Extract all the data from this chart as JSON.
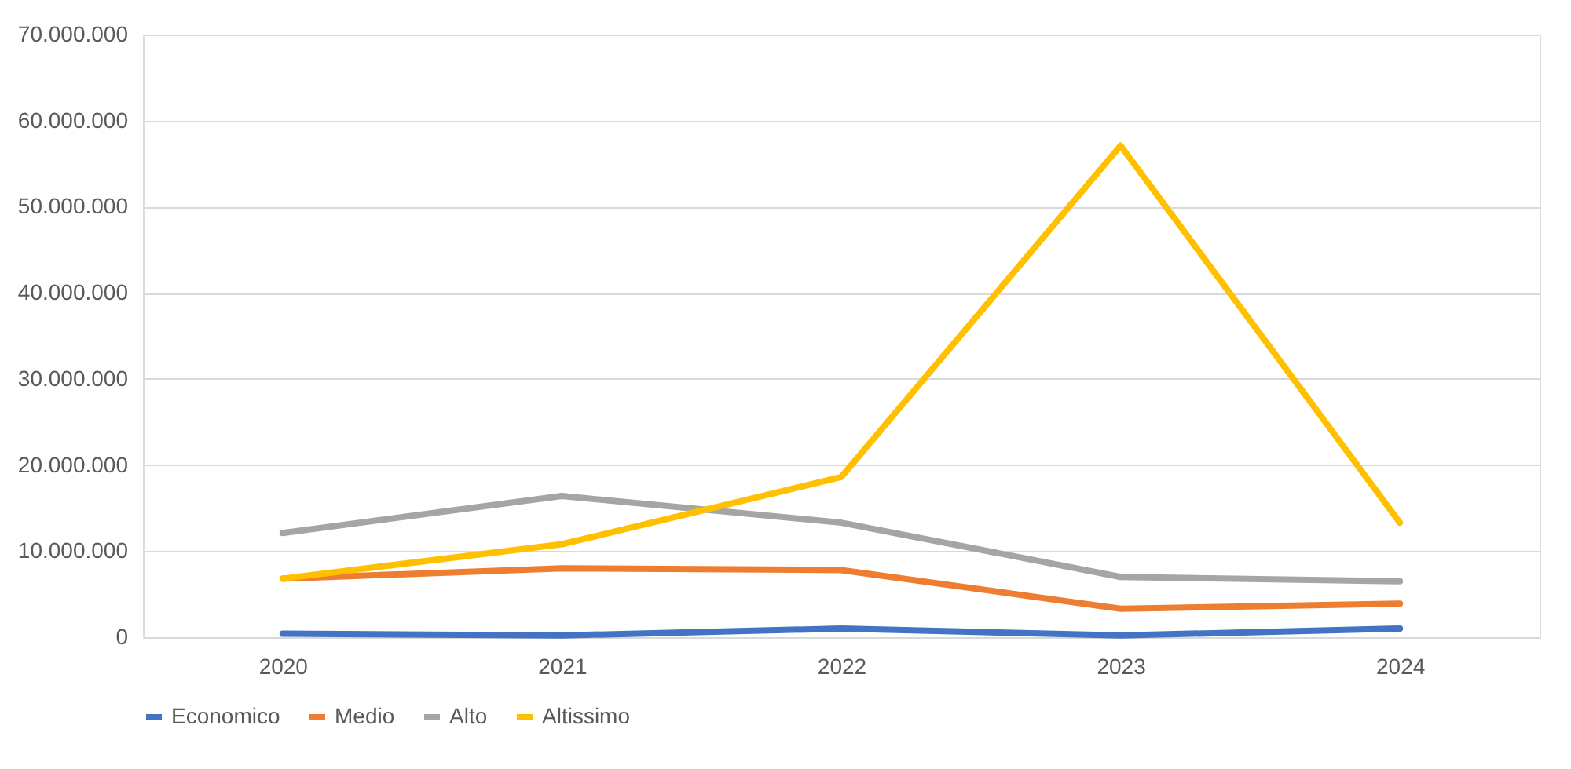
{
  "chart_data": {
    "type": "line",
    "categories": [
      "2020",
      "2021",
      "2022",
      "2023",
      "2024"
    ],
    "series": [
      {
        "name": "Economico",
        "color": "#4472c4",
        "values": [
          400000,
          200000,
          1000000,
          200000,
          1000000
        ]
      },
      {
        "name": "Medio",
        "color": "#ed7d31",
        "values": [
          6800000,
          8000000,
          7800000,
          3300000,
          3900000
        ]
      },
      {
        "name": "Alto",
        "color": "#a5a5a5",
        "values": [
          12100000,
          16400000,
          13300000,
          7000000,
          6500000
        ]
      },
      {
        "name": "Altissimo",
        "color": "#ffc000",
        "values": [
          6800000,
          10800000,
          18600000,
          57100000,
          13300000
        ]
      }
    ],
    "ylim": [
      0,
      70000000
    ],
    "yticks": [
      0,
      {
        "value": 10000000,
        "label": "10.000.000"
      },
      {
        "value": 20000000,
        "label": "20.000.000"
      },
      {
        "value": 30000000,
        "label": "30.000.000"
      },
      {
        "value": 40000000,
        "label": "40.000.000"
      },
      {
        "value": 50000000,
        "label": "50.000.000"
      },
      {
        "value": 60000000,
        "label": "60.000.000"
      },
      {
        "value": 70000000,
        "label": "70.000.000"
      }
    ],
    "grid": "y",
    "legend": "bottom",
    "marker": "none",
    "line_style": "solid"
  }
}
